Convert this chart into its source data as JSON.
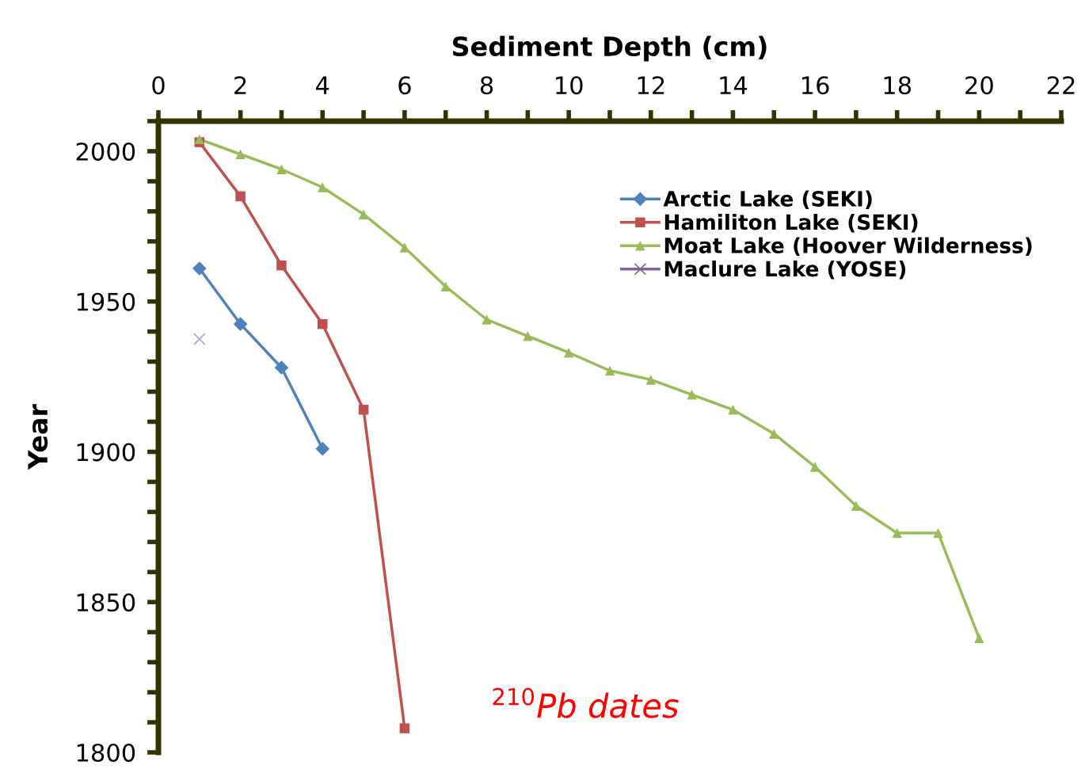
{
  "chart_data": {
    "type": "line",
    "xlabel": "Sediment Depth (cm)",
    "ylabel": "Year",
    "xlim": [
      0,
      22
    ],
    "xticks": [
      0,
      2,
      4,
      6,
      8,
      10,
      12,
      14,
      16,
      18,
      20,
      22
    ],
    "ylim": [
      1800,
      2010
    ],
    "yticks": [
      1800,
      1850,
      1900,
      1950,
      2000
    ],
    "grid": false,
    "legend": "top right",
    "annotations": [
      "$^{210}$Pb dates"
    ],
    "series": [
      {
        "name": "Arctic Lake (SEKI)",
        "color": "#4f81bd",
        "marker": "diamond",
        "x": [
          1,
          2,
          3,
          4
        ],
        "values": [
          1961,
          1942.5,
          1928,
          1901
        ]
      },
      {
        "name": "Hamiliton Lake (SEKI)",
        "color": "#c0504d",
        "marker": "square",
        "x": [
          1,
          2,
          3,
          4,
          5,
          6
        ],
        "values": [
          2003,
          1985,
          1962,
          1942.5,
          1914,
          1808
        ]
      },
      {
        "name": "Moat Lake (Hoover Wilderness)",
        "color": "#9bbb59",
        "marker": "triangle",
        "x": [
          1,
          2,
          3,
          4,
          5,
          6,
          7,
          8,
          9,
          10,
          11,
          12,
          13,
          14,
          15,
          16,
          17,
          18,
          19,
          20
        ],
        "values": [
          2004,
          1999,
          1994,
          1988,
          1979,
          1968,
          1955,
          1944,
          1938.5,
          1933,
          1927,
          1924,
          1919,
          1914,
          1906,
          1895,
          1882,
          1873,
          1873,
          1838
        ]
      },
      {
        "name": "Maclure Lake (YOSE)",
        "color": "#8064a2",
        "marker": "cross",
        "x": [
          1
        ],
        "values": [
          1937.5
        ]
      }
    ]
  }
}
